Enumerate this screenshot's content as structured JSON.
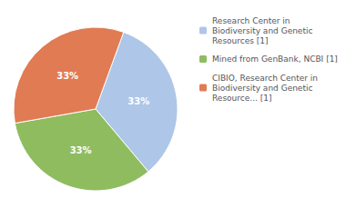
{
  "chart_data": {
    "type": "pie",
    "categories": [
      "Research Center in\nBiodiversity and Genetic\nResources [1]",
      "Mined from GenBank, NCBI [1]",
      "CIBIO, Research Center in\nBiodiversity and Genetic\nResource... [1]"
    ],
    "values": [
      33.33,
      33.33,
      33.34
    ],
    "value_labels": [
      "33%",
      "33%",
      "33%"
    ],
    "colors": [
      "#aec6e8",
      "#8fbc5f",
      "#e07b54"
    ],
    "data_labels": true,
    "legend": "upper right"
  }
}
